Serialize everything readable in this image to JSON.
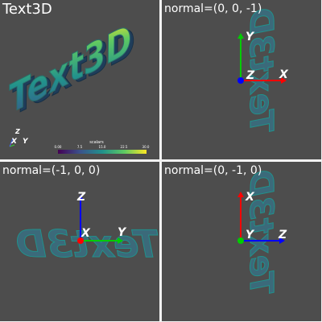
{
  "panes": [
    {
      "id": "main",
      "title": "Text3D"
    },
    {
      "id": "normal-z",
      "title": "normal=(0, 0, -1)"
    },
    {
      "id": "normal-x",
      "title": "normal=(-1, 0, 0)"
    },
    {
      "id": "normal-y",
      "title": "normal=(0, -1, 0)"
    }
  ],
  "colorbar": {
    "title": "scalars",
    "ticks": [
      "0.00",
      "7.5",
      "15.0",
      "22.5",
      "30.0"
    ],
    "colors": [
      "#440154",
      "#3b528b",
      "#21918c",
      "#5ec962",
      "#fde725"
    ]
  },
  "axes_labels": {
    "x": "X",
    "y": "Y",
    "z": "Z"
  },
  "axis_colors": {
    "x": "#ff0000",
    "y": "#00cc00",
    "z": "#0000ff"
  }
}
